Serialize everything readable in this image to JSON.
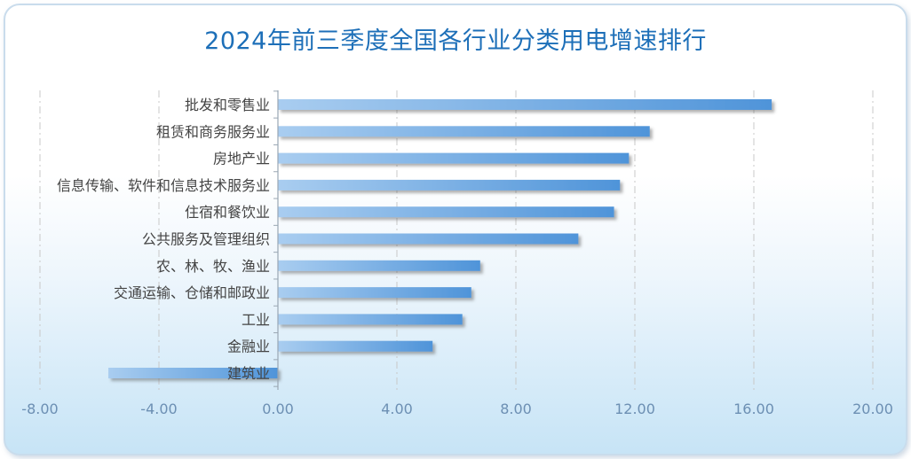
{
  "chart_data": {
    "type": "bar",
    "orientation": "horizontal",
    "title": "2024年前三季度全国各行业分类用电增速排行",
    "categories": [
      "批发和零售业",
      "租赁和商务服务业",
      "房地产业",
      "信息传输、软件和信息技术服务业",
      "住宿和餐饮业",
      "公共服务及管理组织",
      "农、林、牧、渔业",
      "交通运输、仓储和邮政业",
      "工业",
      "金融业",
      "建筑业"
    ],
    "values": [
      16.6,
      12.5,
      11.8,
      11.5,
      11.3,
      10.1,
      6.8,
      6.5,
      6.2,
      5.2,
      -5.7
    ],
    "xlim": [
      -8,
      20
    ],
    "xticks": [
      "-8.00",
      "-4.00",
      "0.00",
      "4.00",
      "8.00",
      "12.00",
      "16.00",
      "20.00"
    ],
    "xtick_values": [
      -8,
      -4,
      0,
      4,
      8,
      12,
      16,
      20
    ],
    "grid": "vertical dashed",
    "colors": {
      "bar_start": "#a9cdf0",
      "bar_end": "#4f94d9",
      "title": "#1d6fb8",
      "tick": "#6c8fb3",
      "label": "#444444"
    }
  }
}
